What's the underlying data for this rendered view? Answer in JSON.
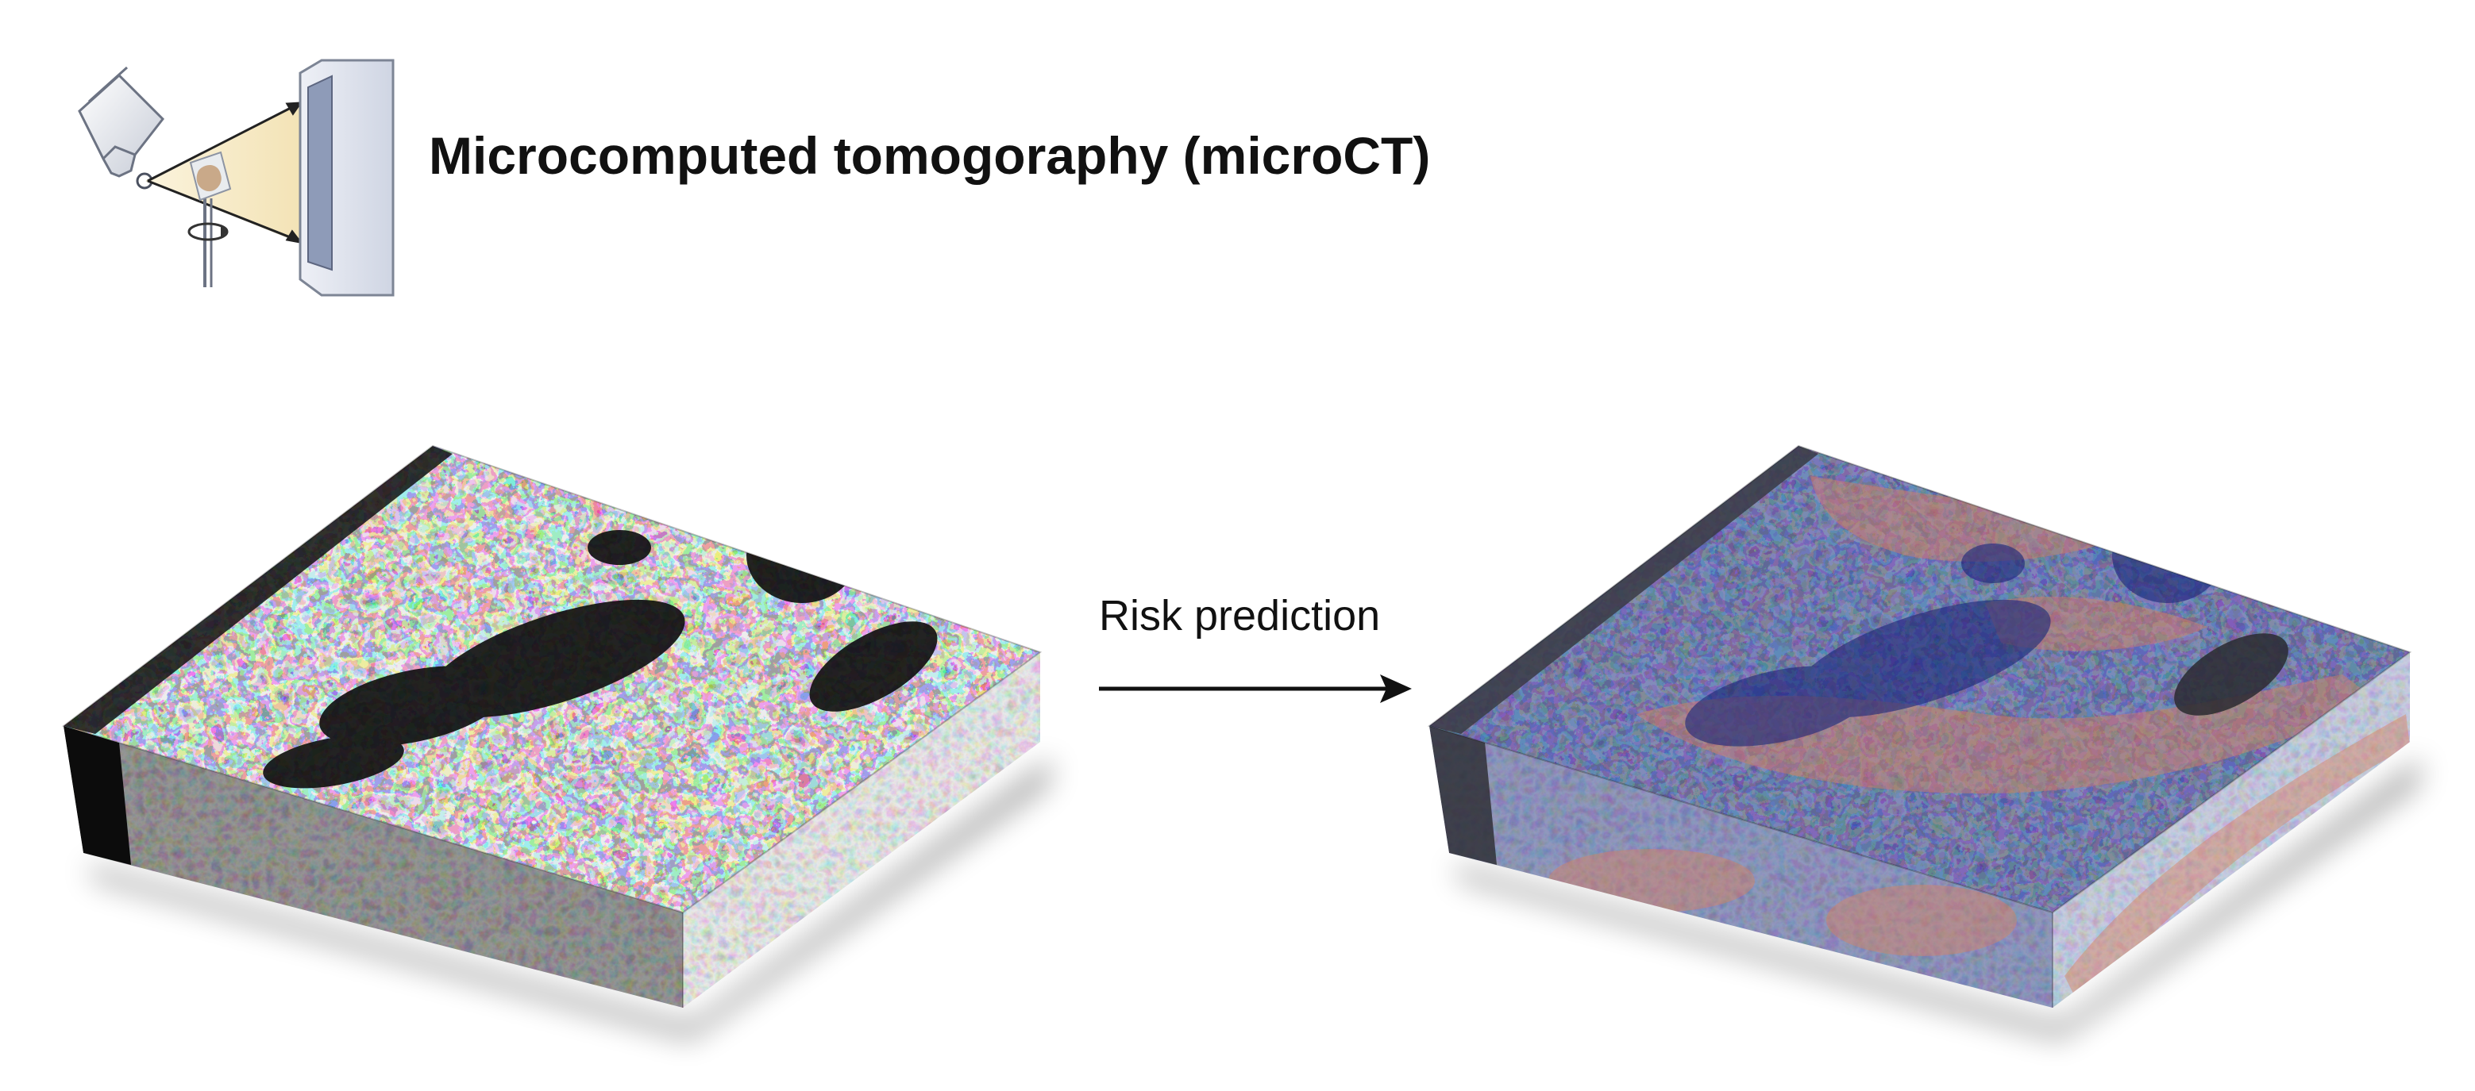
{
  "header": {
    "title": "Microcomputed tomogoraphy (microCT)",
    "icon": "microct-scanner-icon"
  },
  "transition": {
    "label": "Risk prediction",
    "icon": "right-arrow-icon"
  },
  "panels": {
    "input_volume": "grayscale-tissue-block",
    "output_volume": "risk-heatmap-tissue-block"
  },
  "colors": {
    "text": "#111111",
    "heatmap_low": "#2a3a8f",
    "heatmap_high": "#d98060",
    "beam": "#f7e9c4",
    "detector": "#8e9bb8"
  }
}
